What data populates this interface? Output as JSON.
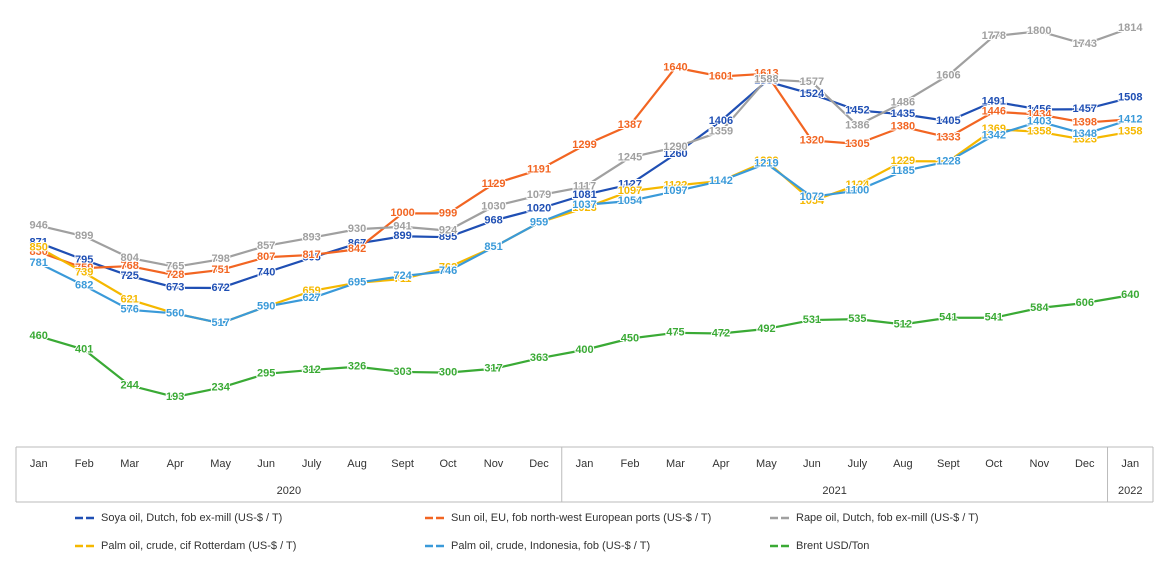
{
  "chart_data": {
    "type": "line",
    "categories": [
      "Jan",
      "Feb",
      "Mar",
      "Apr",
      "May",
      "Jun",
      "July",
      "Aug",
      "Sept",
      "Oct",
      "Nov",
      "Dec",
      "Jan",
      "Feb",
      "Mar",
      "Apr",
      "May",
      "Jun",
      "July",
      "Aug",
      "Sept",
      "Oct",
      "Nov",
      "Dec",
      "Jan"
    ],
    "year_labels": [
      "2020",
      "2021",
      "2022"
    ],
    "series": [
      {
        "name": "Soya oil, Dutch, fob ex-mill (US-$ / T)",
        "color": "#1f4fb4",
        "values": [
          871,
          795,
          725,
          673,
          672,
          740,
          805,
          867,
          899,
          895,
          968,
          1020,
          1081,
          1127,
          1260,
          1406,
          1580,
          1524,
          1452,
          1435,
          1405,
          1491,
          1456,
          1457,
          1508
        ]
      },
      {
        "name": "Sun oil, EU, fob north-west European ports (US-$ / T)",
        "color": "#f26522",
        "values": [
          830,
          759,
          768,
          728,
          751,
          807,
          817,
          842,
          1000,
          999,
          1129,
          1191,
          1299,
          1387,
          1640,
          1601,
          1613,
          1320,
          1305,
          1380,
          1333,
          1446,
          1434,
          1398,
          1413
        ]
      },
      {
        "name": "Rape oil, Dutch, fob ex-mill (US-$ / T)",
        "color": "#a0a0a0",
        "values": [
          946,
          899,
          804,
          765,
          798,
          857,
          893,
          930,
          941,
          924,
          1030,
          1079,
          1117,
          1245,
          1290,
          1359,
          1588,
          1577,
          1386,
          1486,
          1606,
          1778,
          1800,
          1743,
          1814
        ]
      },
      {
        "name": "Palm oil, crude, cif Rotterdam (US-$ / T)",
        "color": "#f5b800",
        "values": [
          850,
          739,
          621,
          560,
          517,
          590,
          659,
          695,
          711,
          762,
          851,
          959,
          1023,
          1097,
          1122,
          1142,
          1229,
          1054,
          1124,
          1229,
          1228,
          1369,
          1358,
          1323,
          1358
        ]
      },
      {
        "name": "Palm oil, crude, Indonesia, fob (US-$ / T)",
        "color": "#3a9ad9",
        "values": [
          781,
          682,
          576,
          560,
          517,
          590,
          627,
          695,
          724,
          746,
          851,
          959,
          1037,
          1054,
          1097,
          1142,
          1219,
          1072,
          1100,
          1185,
          1228,
          1342,
          1403,
          1348,
          1412
        ]
      },
      {
        "name": "Brent USD/Ton",
        "color": "#3aaa35",
        "values": [
          460,
          401,
          244,
          193,
          234,
          295,
          312,
          326,
          303,
          300,
          317,
          363,
          400,
          450,
          475,
          472,
          492,
          531,
          535,
          512,
          541,
          541,
          584,
          606,
          640
        ]
      }
    ]
  }
}
